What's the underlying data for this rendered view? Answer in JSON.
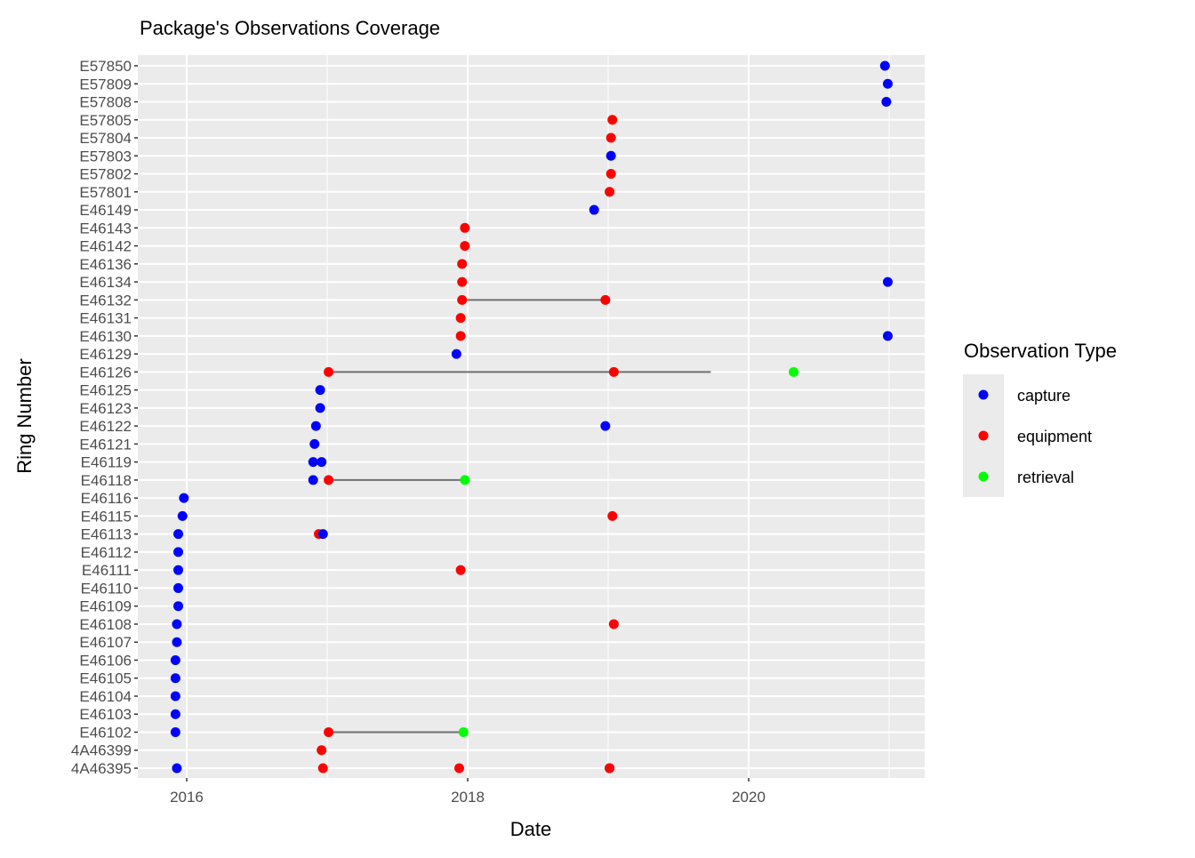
{
  "chart_data": {
    "type": "scatter",
    "title": "Package's Observations Coverage",
    "xlabel": "Date",
    "ylabel": "Ring Number",
    "xlim": [
      2015.652,
      2021.253
    ],
    "x_ticks": [
      2016,
      2018,
      2020
    ],
    "x_tick_labels": [
      "2016",
      "2018",
      "2020"
    ],
    "grid": true,
    "legend": {
      "title": "Observation Type",
      "placement": "right",
      "entries": [
        {
          "label": "capture",
          "color": "#0000FF"
        },
        {
          "label": "equipment",
          "color": "#FF0000"
        },
        {
          "label": "retrieval",
          "color": "#00FF00"
        }
      ]
    },
    "categories": [
      "4A46395",
      "4A46399",
      "E46102",
      "E46103",
      "E46104",
      "E46105",
      "E46106",
      "E46107",
      "E46108",
      "E46109",
      "E46110",
      "E46111",
      "E46112",
      "E46113",
      "E46115",
      "E46116",
      "E46118",
      "E46119",
      "E46121",
      "E46122",
      "E46123",
      "E46125",
      "E46126",
      "E46129",
      "E46130",
      "E46131",
      "E46132",
      "E46134",
      "E46136",
      "E46142",
      "E46143",
      "E46149",
      "E57801",
      "E57802",
      "E57803",
      "E57804",
      "E57805",
      "E57808",
      "E57809",
      "E57850"
    ],
    "segments": [
      {
        "ring": "E46132",
        "from": 2017.96,
        "to": 2018.98
      },
      {
        "ring": "E46126",
        "from": 2017.01,
        "to": 2019.73
      },
      {
        "ring": "E46118",
        "from": 2017.01,
        "to": 2017.98
      },
      {
        "ring": "E46102",
        "from": 2017.01,
        "to": 2017.97
      }
    ],
    "points": [
      {
        "ring": "E57850",
        "date": 2020.97,
        "type": "capture"
      },
      {
        "ring": "E57809",
        "date": 2020.99,
        "type": "capture"
      },
      {
        "ring": "E57808",
        "date": 2020.98,
        "type": "capture"
      },
      {
        "ring": "E57805",
        "date": 2019.03,
        "type": "equipment"
      },
      {
        "ring": "E57804",
        "date": 2019.02,
        "type": "equipment"
      },
      {
        "ring": "E57803",
        "date": 2019.02,
        "type": "capture"
      },
      {
        "ring": "E57802",
        "date": 2019.02,
        "type": "equipment"
      },
      {
        "ring": "E57801",
        "date": 2019.01,
        "type": "equipment"
      },
      {
        "ring": "E46149",
        "date": 2018.9,
        "type": "capture"
      },
      {
        "ring": "E46143",
        "date": 2017.98,
        "type": "equipment"
      },
      {
        "ring": "E46142",
        "date": 2017.98,
        "type": "equipment"
      },
      {
        "ring": "E46136",
        "date": 2017.96,
        "type": "equipment"
      },
      {
        "ring": "E46134",
        "date": 2017.96,
        "type": "equipment"
      },
      {
        "ring": "E46134",
        "date": 2020.99,
        "type": "capture"
      },
      {
        "ring": "E46132",
        "date": 2017.96,
        "type": "equipment"
      },
      {
        "ring": "E46132",
        "date": 2018.98,
        "type": "equipment"
      },
      {
        "ring": "E46131",
        "date": 2017.95,
        "type": "equipment"
      },
      {
        "ring": "E46130",
        "date": 2017.95,
        "type": "equipment"
      },
      {
        "ring": "E46130",
        "date": 2020.99,
        "type": "capture"
      },
      {
        "ring": "E46129",
        "date": 2017.92,
        "type": "capture"
      },
      {
        "ring": "E46126",
        "date": 2017.01,
        "type": "equipment"
      },
      {
        "ring": "E46126",
        "date": 2019.04,
        "type": "equipment"
      },
      {
        "ring": "E46126",
        "date": 2020.32,
        "type": "retrieval"
      },
      {
        "ring": "E46125",
        "date": 2016.95,
        "type": "capture"
      },
      {
        "ring": "E46123",
        "date": 2016.95,
        "type": "capture"
      },
      {
        "ring": "E46122",
        "date": 2016.92,
        "type": "capture"
      },
      {
        "ring": "E46122",
        "date": 2018.98,
        "type": "capture"
      },
      {
        "ring": "E46121",
        "date": 2016.91,
        "type": "capture"
      },
      {
        "ring": "E46119",
        "date": 2016.9,
        "type": "capture"
      },
      {
        "ring": "E46119",
        "date": 2016.96,
        "type": "capture"
      },
      {
        "ring": "E46118",
        "date": 2016.9,
        "type": "capture"
      },
      {
        "ring": "E46118",
        "date": 2017.01,
        "type": "equipment"
      },
      {
        "ring": "E46118",
        "date": 2017.98,
        "type": "retrieval"
      },
      {
        "ring": "E46116",
        "date": 2015.98,
        "type": "capture"
      },
      {
        "ring": "E46115",
        "date": 2015.97,
        "type": "capture"
      },
      {
        "ring": "E46115",
        "date": 2019.03,
        "type": "equipment"
      },
      {
        "ring": "E46113",
        "date": 2015.94,
        "type": "capture"
      },
      {
        "ring": "E46113",
        "date": 2016.94,
        "type": "equipment"
      },
      {
        "ring": "E46113",
        "date": 2016.97,
        "type": "capture"
      },
      {
        "ring": "E46112",
        "date": 2015.94,
        "type": "capture"
      },
      {
        "ring": "E46111",
        "date": 2015.94,
        "type": "capture"
      },
      {
        "ring": "E46111",
        "date": 2017.95,
        "type": "equipment"
      },
      {
        "ring": "E46110",
        "date": 2015.94,
        "type": "capture"
      },
      {
        "ring": "E46109",
        "date": 2015.94,
        "type": "capture"
      },
      {
        "ring": "E46108",
        "date": 2015.93,
        "type": "capture"
      },
      {
        "ring": "E46108",
        "date": 2019.04,
        "type": "equipment"
      },
      {
        "ring": "E46107",
        "date": 2015.93,
        "type": "capture"
      },
      {
        "ring": "E46106",
        "date": 2015.92,
        "type": "capture"
      },
      {
        "ring": "E46105",
        "date": 2015.92,
        "type": "capture"
      },
      {
        "ring": "E46104",
        "date": 2015.92,
        "type": "capture"
      },
      {
        "ring": "E46103",
        "date": 2015.92,
        "type": "capture"
      },
      {
        "ring": "E46102",
        "date": 2015.92,
        "type": "capture"
      },
      {
        "ring": "E46102",
        "date": 2017.01,
        "type": "equipment"
      },
      {
        "ring": "E46102",
        "date": 2017.97,
        "type": "retrieval"
      },
      {
        "ring": "4A46399",
        "date": 2016.96,
        "type": "equipment"
      },
      {
        "ring": "4A46395",
        "date": 2015.93,
        "type": "capture"
      },
      {
        "ring": "4A46395",
        "date": 2016.97,
        "type": "equipment"
      },
      {
        "ring": "4A46395",
        "date": 2017.94,
        "type": "equipment"
      },
      {
        "ring": "4A46395",
        "date": 2019.01,
        "type": "capture"
      },
      {
        "ring": "4A46395",
        "date": 2019.01,
        "type": "equipment"
      }
    ]
  }
}
